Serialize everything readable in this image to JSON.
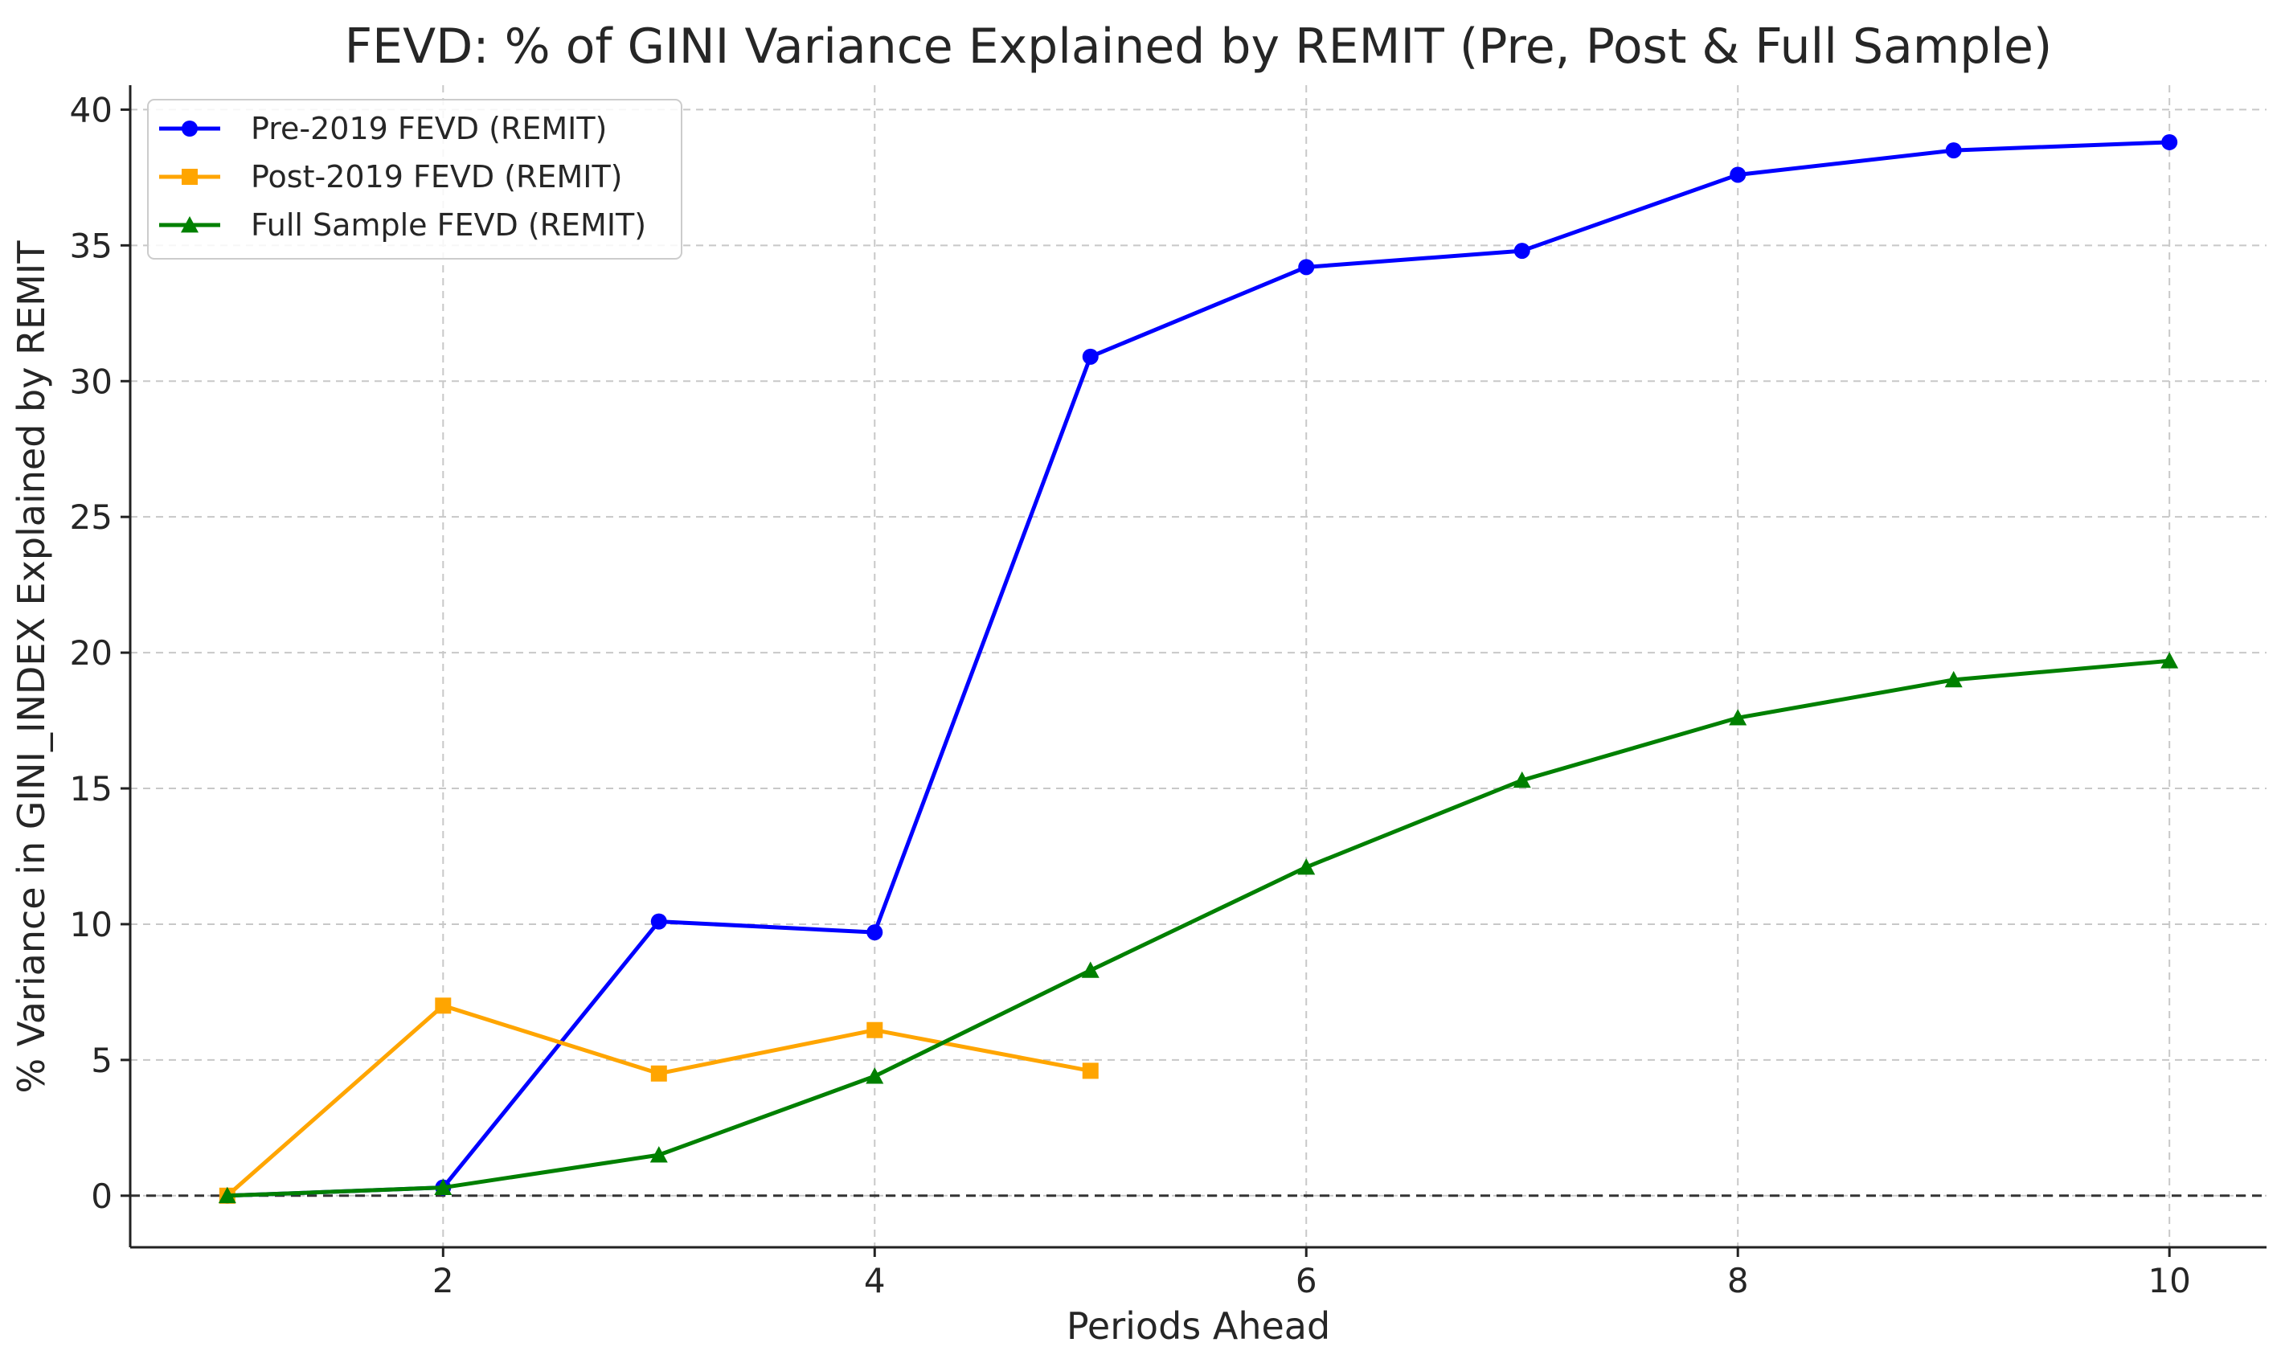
{
  "chart_data": {
    "type": "line",
    "title": "FEVD: % of GINI Variance Explained by REMIT (Pre, Post & Full Sample)",
    "xlabel": "Periods Ahead",
    "ylabel": "% Variance in GINI_INDEX Explained by REMIT",
    "xlim": [
      0.55,
      10.45
    ],
    "ylim": [
      -1.9,
      40.9
    ],
    "xticks": [
      2,
      4,
      6,
      8,
      10
    ],
    "yticks": [
      0,
      5,
      10,
      15,
      20,
      25,
      30,
      35,
      40
    ],
    "grid": true,
    "zero_reference_line": true,
    "legend_position": "top-left",
    "series": [
      {
        "name": "Pre-2019 FEVD (REMIT)",
        "color": "#0000ff",
        "marker": "circle",
        "x": [
          1,
          2,
          3,
          4,
          5,
          6,
          7,
          8,
          9,
          10
        ],
        "values": [
          0.0,
          0.3,
          10.1,
          9.7,
          30.9,
          34.2,
          34.8,
          37.6,
          38.5,
          38.8
        ]
      },
      {
        "name": "Post-2019 FEVD (REMIT)",
        "color": "#ffa500",
        "marker": "square",
        "x": [
          1,
          2,
          3,
          4,
          5
        ],
        "values": [
          0.0,
          7.0,
          4.5,
          6.1,
          4.6
        ]
      },
      {
        "name": "Full Sample FEVD (REMIT)",
        "color": "#008000",
        "marker": "triangle",
        "x": [
          1,
          2,
          3,
          4,
          5,
          6,
          7,
          8,
          9,
          10
        ],
        "values": [
          0.0,
          0.3,
          1.5,
          4.4,
          8.3,
          12.1,
          15.3,
          17.6,
          19.0,
          19.7
        ]
      }
    ]
  }
}
